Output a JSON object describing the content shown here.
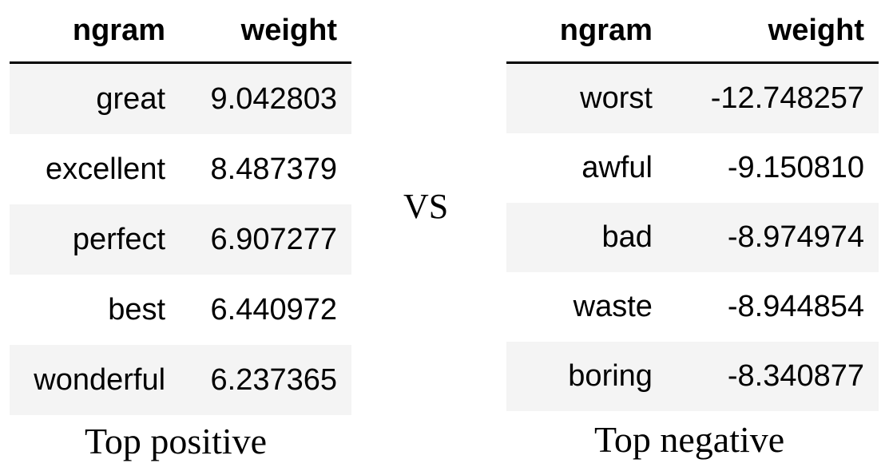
{
  "positive": {
    "headers": [
      "ngram",
      "weight"
    ],
    "rows": [
      {
        "ngram": "great",
        "weight": "9.042803"
      },
      {
        "ngram": "excellent",
        "weight": "8.487379"
      },
      {
        "ngram": "perfect",
        "weight": "6.907277"
      },
      {
        "ngram": "best",
        "weight": "6.440972"
      },
      {
        "ngram": "wonderful",
        "weight": "6.237365"
      }
    ],
    "caption": "Top positive"
  },
  "separator": "VS",
  "negative": {
    "headers": [
      "ngram",
      "weight"
    ],
    "rows": [
      {
        "ngram": "worst",
        "weight": "-12.748257"
      },
      {
        "ngram": "awful",
        "weight": "-9.150810"
      },
      {
        "ngram": "bad",
        "weight": "-8.974974"
      },
      {
        "ngram": "waste",
        "weight": "-8.944854"
      },
      {
        "ngram": "boring",
        "weight": "-8.340877"
      }
    ],
    "caption": "Top negative"
  }
}
